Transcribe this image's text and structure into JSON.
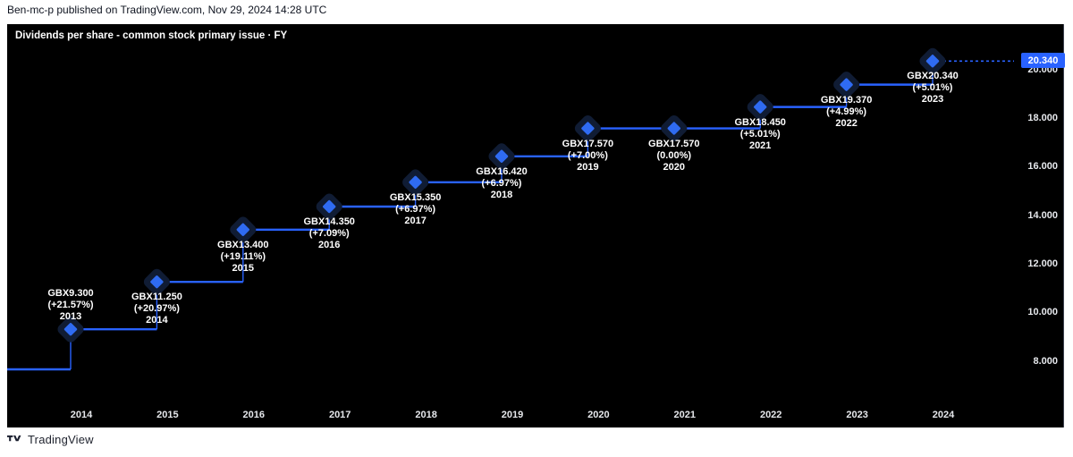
{
  "header": {
    "text": "Ben-mc-p published on TradingView.com, Nov 29, 2024 14:28 UTC"
  },
  "footer": {
    "brand": "TradingView",
    "logo_icon": "tradingview-logo"
  },
  "price_badge": "20.340",
  "colors": {
    "chart_bg": "#000000",
    "line": "#2962FF",
    "marker": "#2F6BF2",
    "marker_halo": "#101c34",
    "badge_bg": "#2962FF",
    "badge_text": "#FFFFFF",
    "label_text": "#FFFFFF",
    "axis_text": "#E6E8EC"
  },
  "chart_data": {
    "type": "line",
    "subtype": "step-line-with-diamond-markers",
    "title": "Dividends per share - common stock primary issue · FY",
    "grid": false,
    "legend_position": "none",
    "prev_value": 7.65,
    "x": [
      2013,
      2014,
      2015,
      2016,
      2017,
      2018,
      2019,
      2020,
      2021,
      2022,
      2023
    ],
    "values": [
      9.3,
      11.25,
      13.4,
      14.35,
      15.35,
      16.42,
      17.57,
      17.57,
      18.45,
      19.37,
      20.34
    ],
    "points": [
      {
        "year": "2013",
        "value": 9.3,
        "label": "GBX9.300",
        "change": "(+21.57%)",
        "label_position": "above"
      },
      {
        "year": "2014",
        "value": 11.25,
        "label": "GBX11.250",
        "change": "(+20.97%)",
        "label_position": "below"
      },
      {
        "year": "2015",
        "value": 13.4,
        "label": "GBX13.400",
        "change": "(+19.11%)",
        "label_position": "below"
      },
      {
        "year": "2016",
        "value": 14.35,
        "label": "GBX14.350",
        "change": "(+7.09%)",
        "label_position": "below"
      },
      {
        "year": "2017",
        "value": 15.35,
        "label": "GBX15.350",
        "change": "(+6.97%)",
        "label_position": "below"
      },
      {
        "year": "2018",
        "value": 16.42,
        "label": "GBX16.420",
        "change": "(+6.97%)",
        "label_position": "below"
      },
      {
        "year": "2019",
        "value": 17.57,
        "label": "GBX17.570",
        "change": "(+7.00%)",
        "label_position": "below"
      },
      {
        "year": "2020",
        "value": 17.57,
        "label": "GBX17.570",
        "change": "(0.00%)",
        "label_position": "below"
      },
      {
        "year": "2021",
        "value": 18.45,
        "label": "GBX18.450",
        "change": "(+5.01%)",
        "label_position": "below"
      },
      {
        "year": "2022",
        "value": 19.37,
        "label": "GBX19.370",
        "change": "(+4.99%)",
        "label_position": "below"
      },
      {
        "year": "2023",
        "value": 20.34,
        "label": "GBX20.340",
        "change": "(+5.01%)",
        "label_position": "below"
      }
    ],
    "x_axis_ticks": [
      "2014",
      "2015",
      "2016",
      "2017",
      "2018",
      "2019",
      "2020",
      "2021",
      "2022",
      "2023",
      "2024"
    ],
    "y_axis_ticks": [
      "8.000",
      "10.000",
      "12.000",
      "14.000",
      "16.000",
      "18.000",
      "20.000"
    ],
    "y_axis_tick_values": [
      8,
      10,
      12,
      14,
      16,
      18,
      20
    ],
    "ylim": [
      6.1,
      22.0
    ],
    "last_price_label": "20.340"
  }
}
